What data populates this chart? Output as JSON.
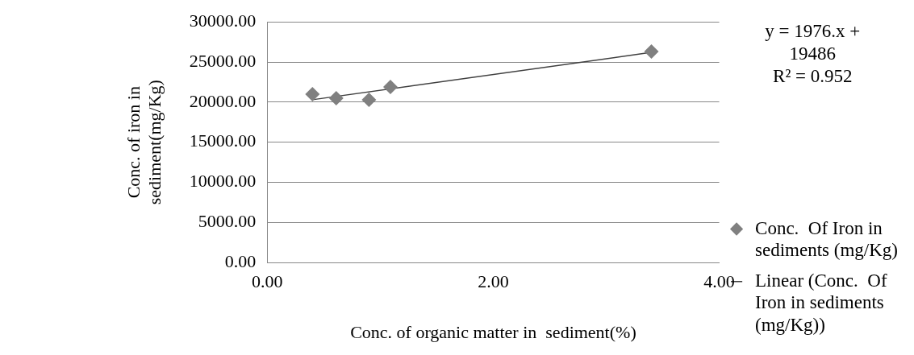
{
  "chart_data": {
    "type": "scatter",
    "xlabel": "Conc. of organic matter in  sediment(%)",
    "ylabel": "Conc. of iron in sediment(mg/Kg)",
    "series": [
      {
        "name": "Conc.  Of Iron in sediments (mg/Kg)",
        "color": "#808080",
        "marker": "diamond",
        "x": [
          0.4,
          0.61,
          0.9,
          1.09,
          3.4
        ],
        "values": [
          21000,
          20500,
          20300,
          21900,
          26300
        ]
      },
      {
        "name": "Linear (Conc.  Of Iron in sediments (mg/Kg))",
        "type": "line",
        "color": "#404040",
        "marker": "none",
        "line_style": "solid",
        "x": [
          0.4,
          3.4
        ],
        "values": [
          20300,
          26200
        ]
      }
    ],
    "xlim": [
      0,
      4
    ],
    "xticks": [
      {
        "value": 0,
        "label": "0.00"
      },
      {
        "value": 2,
        "label": "2.00"
      },
      {
        "value": 4,
        "label": "4.00"
      }
    ],
    "ylim": [
      0,
      30000
    ],
    "yticks": [
      {
        "value": 0,
        "label": "0.00"
      },
      {
        "value": 5000,
        "label": "5000.00"
      },
      {
        "value": 10000,
        "label": "10000.00"
      },
      {
        "value": 15000,
        "label": "15000.00"
      },
      {
        "value": 20000,
        "label": "20000.00"
      },
      {
        "value": 25000,
        "label": "25000.00"
      },
      {
        "value": 30000,
        "label": "30000.00"
      }
    ],
    "grid": "y",
    "legend": "right",
    "annotations": [
      "y = 1976.x + 19486",
      "R² = 0.952"
    ]
  }
}
